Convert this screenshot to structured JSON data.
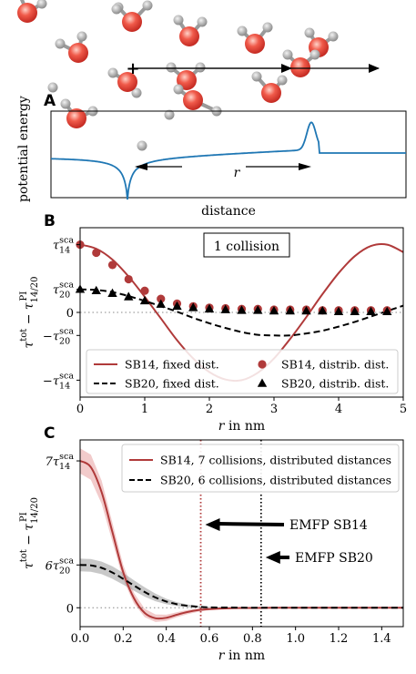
{
  "colors": {
    "sb14": "#b03a3a",
    "sb20": "#000000",
    "band14": "#e8a0a0",
    "band20": "#9a9a9a",
    "potential": "#1f77b4",
    "molecule_o": "#e23a3a",
    "molecule_h": "#a8a8a8"
  },
  "illustration": {
    "panel_label": "A",
    "ylabel": "potential energy",
    "xlabel": "distance",
    "r_label": "r",
    "probe_symbol": "+"
  },
  "chart_data": [
    {
      "panel": "B",
      "type": "line",
      "xlabel_var": "r",
      "xlabel_rest": " in nm",
      "ylabel": "τtot − τPI14/20",
      "xlim": [
        0,
        5
      ],
      "xticks": [
        "0",
        "1",
        "2",
        "3",
        "4",
        "5"
      ],
      "ytick_labels": [
        {
          "label": "τ14sca",
          "value": 1.0,
          "main": "τ",
          "sup": "sca",
          "sub": "14",
          "minus": false
        },
        {
          "label": "τ20sca",
          "value": 0.34,
          "main": "τ",
          "sup": "sca",
          "sub": "20",
          "minus": false
        },
        {
          "label": "0",
          "value": 0,
          "main": "0",
          "sup": "",
          "sub": "",
          "minus": false
        },
        {
          "label": "−τ20sca",
          "value": -0.34,
          "main": "τ",
          "sup": "sca",
          "sub": "20",
          "minus": true
        },
        {
          "label": "−τ14sca",
          "value": -1.0,
          "main": "τ",
          "sup": "sca",
          "sub": "14",
          "minus": true
        }
      ],
      "ylim": [
        -1.25,
        1.25
      ],
      "annotation": "1 collision",
      "legend_position": "lower",
      "series": [
        {
          "name": "SB14, fixed dist.",
          "style": "solid",
          "x": [
            0,
            0.25,
            0.5,
            0.75,
            1.0,
            1.25,
            1.5,
            1.75,
            2.0,
            2.25,
            2.5,
            2.75,
            3.0,
            3.25,
            3.5,
            3.75,
            4.0,
            4.25,
            4.5,
            4.75,
            5.0
          ],
          "y": [
            1.0,
            0.94,
            0.78,
            0.53,
            0.23,
            -0.09,
            -0.41,
            -0.68,
            -0.88,
            -0.99,
            -1.0,
            -0.89,
            -0.68,
            -0.39,
            -0.07,
            0.27,
            0.58,
            0.83,
            0.98,
            1.0,
            0.89
          ]
        },
        {
          "name": "SB20, fixed dist.",
          "style": "dashed",
          "x": [
            0,
            0.25,
            0.5,
            0.75,
            1.0,
            1.25,
            1.5,
            1.75,
            2.0,
            2.25,
            2.5,
            2.75,
            3.0,
            3.25,
            3.5,
            3.75,
            4.0,
            4.25,
            4.5,
            4.75,
            5.0
          ],
          "y": [
            0.34,
            0.33,
            0.3,
            0.24,
            0.17,
            0.09,
            0.01,
            -0.08,
            -0.16,
            -0.23,
            -0.29,
            -0.33,
            -0.34,
            -0.34,
            -0.31,
            -0.27,
            -0.21,
            -0.14,
            -0.06,
            0.02,
            0.1
          ]
        },
        {
          "name": "SB14, distrib. dist.",
          "style": "circle",
          "x": [
            0,
            0.25,
            0.5,
            0.75,
            1.0,
            1.25,
            1.5,
            1.75,
            2.0,
            2.25,
            2.5,
            2.75,
            3.0,
            3.25,
            3.5,
            3.75,
            4.0,
            4.25,
            4.5,
            4.75
          ],
          "y": [
            1.0,
            0.88,
            0.7,
            0.49,
            0.32,
            0.2,
            0.13,
            0.09,
            0.07,
            0.06,
            0.05,
            0.05,
            0.04,
            0.04,
            0.04,
            0.03,
            0.03,
            0.03,
            0.03,
            0.03
          ]
        },
        {
          "name": "SB20, distrib. dist.",
          "style": "triangle",
          "x": [
            0,
            0.25,
            0.5,
            0.75,
            1.0,
            1.25,
            1.5,
            1.75,
            2.0,
            2.25,
            2.5,
            2.75,
            3.0,
            3.25,
            3.5,
            3.75,
            4.0,
            4.25,
            4.5,
            4.75
          ],
          "y": [
            0.34,
            0.32,
            0.28,
            0.23,
            0.17,
            0.12,
            0.09,
            0.07,
            0.05,
            0.04,
            0.03,
            0.03,
            0.02,
            0.02,
            0.02,
            0.02,
            0.01,
            0.01,
            0.01,
            0.01
          ]
        }
      ]
    },
    {
      "panel": "C",
      "type": "line",
      "xlabel_var": "r",
      "xlabel_rest": " in nm",
      "ylabel": "τtot − τPI14/20",
      "xlim": [
        0,
        1.5
      ],
      "xticks": [
        "0.0",
        "0.2",
        "0.4",
        "0.6",
        "0.8",
        "1.0",
        "1.2",
        "1.4"
      ],
      "ytick_labels": [
        {
          "label": "7τ14sca",
          "value": 7.0,
          "main": "7τ",
          "sup": "sca",
          "sub": "14",
          "minus": false
        },
        {
          "label": "6τ20sca",
          "value": 2.04,
          "main": "6τ",
          "sup": "sca",
          "sub": "20",
          "minus": false
        },
        {
          "label": "0",
          "value": 0,
          "main": "0",
          "sup": "",
          "sub": "",
          "minus": false
        }
      ],
      "ylim": [
        -0.9,
        8.0
      ],
      "legend_position": "top-right",
      "emfp": [
        {
          "label": "EMFP SB14",
          "x": 0.56,
          "color": "#b03a3a"
        },
        {
          "label": "EMFP SB20",
          "x": 0.84,
          "color": "#000000"
        }
      ],
      "series": [
        {
          "name": "SB14, 7 collisions, distributed distances",
          "style": "solid",
          "x": [
            0,
            0.05,
            0.1,
            0.15,
            0.2,
            0.25,
            0.3,
            0.35,
            0.4,
            0.45,
            0.5,
            0.55,
            0.6,
            0.7,
            0.8,
            0.9,
            1.0,
            1.2,
            1.5
          ],
          "y": [
            7.0,
            6.7,
            5.5,
            3.6,
            1.7,
            0.45,
            -0.25,
            -0.5,
            -0.48,
            -0.33,
            -0.2,
            -0.11,
            -0.06,
            -0.02,
            -0.01,
            0,
            0,
            0,
            0
          ],
          "band": [
            0.6,
            0.6,
            0.55,
            0.45,
            0.35,
            0.25,
            0.2,
            0.18,
            0.15,
            0.12,
            0.1,
            0.08,
            0.06,
            0.04,
            0.02,
            0.01,
            0,
            0,
            0
          ]
        },
        {
          "name": "SB20, 6 collisions, distributed distances",
          "style": "dashed",
          "x": [
            0,
            0.05,
            0.1,
            0.15,
            0.2,
            0.25,
            0.3,
            0.35,
            0.4,
            0.45,
            0.5,
            0.55,
            0.6,
            0.7,
            0.8,
            0.9,
            1.0,
            1.2,
            1.5
          ],
          "y": [
            2.04,
            2.02,
            1.9,
            1.68,
            1.38,
            1.06,
            0.75,
            0.49,
            0.3,
            0.17,
            0.09,
            0.05,
            0.02,
            0.01,
            0,
            0,
            0,
            0,
            0
          ],
          "band": [
            0.3,
            0.3,
            0.3,
            0.3,
            0.28,
            0.25,
            0.22,
            0.18,
            0.13,
            0.09,
            0.06,
            0.04,
            0.02,
            0.01,
            0,
            0,
            0,
            0,
            0
          ]
        }
      ]
    }
  ]
}
